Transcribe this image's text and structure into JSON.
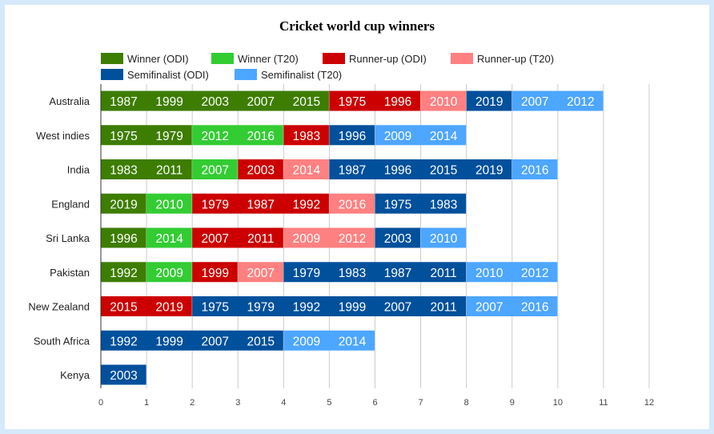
{
  "chart_data": {
    "type": "bar",
    "orientation": "horizontal",
    "stacked": true,
    "title": "Cricket world cup winners",
    "xlim": [
      0,
      12
    ],
    "xticks": [
      0,
      1,
      2,
      3,
      4,
      5,
      6,
      7,
      8,
      9,
      10,
      11,
      12
    ],
    "grid": true,
    "legend_placement": "top-left",
    "series": [
      {
        "name": "Winner (ODI)",
        "color": "#3d7d00"
      },
      {
        "name": "Winner (T20)",
        "color": "#33cc33"
      },
      {
        "name": "Runner-up (ODI)",
        "color": "#cc0000"
      },
      {
        "name": "Runner-up (T20)",
        "color": "#ff8080"
      },
      {
        "name": "Semifinalist (ODI)",
        "color": "#00509c"
      },
      {
        "name": "Semifinalist (T20)",
        "color": "#4da6ff"
      }
    ],
    "categories": [
      {
        "name": "Australia",
        "years": [
          [
            "1987",
            "1999",
            "2003",
            "2007",
            "2015"
          ],
          [],
          [
            "1975",
            "1996"
          ],
          [
            "2010"
          ],
          [
            "2019"
          ],
          [
            "2007",
            "2012"
          ]
        ]
      },
      {
        "name": "West indies",
        "years": [
          [
            "1975",
            "1979"
          ],
          [
            "2012",
            "2016"
          ],
          [
            "1983"
          ],
          [],
          [
            "1996"
          ],
          [
            "2009",
            "2014"
          ]
        ]
      },
      {
        "name": "India",
        "years": [
          [
            "1983",
            "2011"
          ],
          [
            "2007"
          ],
          [
            "2003"
          ],
          [
            "2014"
          ],
          [
            "1987",
            "1996",
            "2015",
            "2019"
          ],
          [
            "2016"
          ]
        ]
      },
      {
        "name": "England",
        "years": [
          [
            "2019"
          ],
          [
            "2010"
          ],
          [
            "1979",
            "1987",
            "1992"
          ],
          [
            "2016"
          ],
          [
            "1975",
            "1983"
          ],
          []
        ]
      },
      {
        "name": "Sri Lanka",
        "years": [
          [
            "1996"
          ],
          [
            "2014"
          ],
          [
            "2007",
            "2011"
          ],
          [
            "2009",
            "2012"
          ],
          [
            "2003"
          ],
          [
            "2010"
          ]
        ]
      },
      {
        "name": "Pakistan",
        "years": [
          [
            "1992"
          ],
          [
            "2009"
          ],
          [
            "1999"
          ],
          [
            "2007"
          ],
          [
            "1979",
            "1983",
            "1987",
            "2011"
          ],
          [
            "2010",
            "2012"
          ]
        ]
      },
      {
        "name": "New Zealand",
        "years": [
          [],
          [],
          [
            "2015",
            "2019"
          ],
          [],
          [
            "1975",
            "1979",
            "1992",
            "1999",
            "2007",
            "2011"
          ],
          [
            "2007",
            "2016"
          ]
        ]
      },
      {
        "name": "South Africa",
        "years": [
          [],
          [],
          [],
          [],
          [
            "1992",
            "1999",
            "2007",
            "2015"
          ],
          [
            "2009",
            "2014"
          ]
        ]
      },
      {
        "name": "Kenya",
        "years": [
          [],
          [],
          [],
          [],
          [
            "2003"
          ],
          []
        ]
      }
    ]
  }
}
